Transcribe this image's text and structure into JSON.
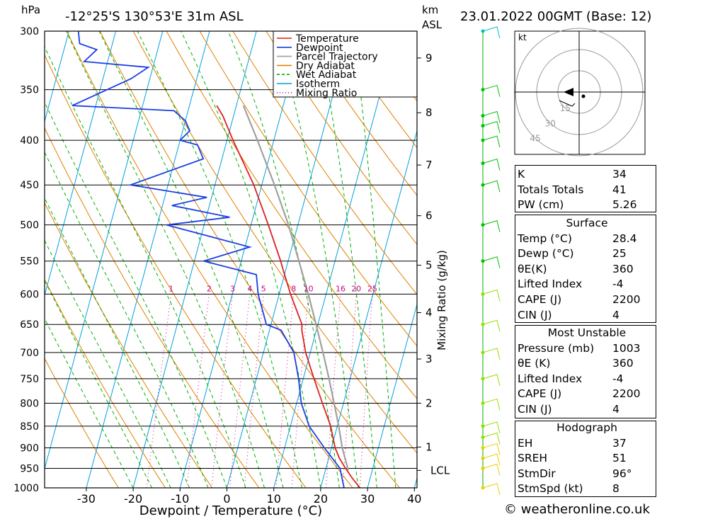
{
  "header": {
    "pressure_unit": "hPa",
    "location": "-12°25'S 130°53'E 31m ASL",
    "height_unit_line1": "km",
    "height_unit_line2": "ASL",
    "datetime": "23.01.2022 00GMT (Base: 12)"
  },
  "copyright": "© weatheronline.co.uk",
  "chart_data": [
    {
      "type": "line",
      "subtype": "skew-T log-P sounding",
      "xlabel": "Dewpoint / Temperature (°C)",
      "ylabel": "hPa",
      "secondary_ylabel": "Mixing Ratio (g/kg)",
      "ylim": [
        1000,
        300
      ],
      "y_scale": "log",
      "xlim": [
        -40,
        40
      ],
      "x_ticks": [
        -30,
        -20,
        -10,
        0,
        10,
        20,
        30,
        40
      ],
      "pressure_levels": [
        300,
        350,
        400,
        450,
        500,
        550,
        600,
        650,
        700,
        750,
        800,
        850,
        900,
        950,
        1000
      ],
      "height_ticks_km": [
        {
          "label": "9",
          "p": 322
        },
        {
          "label": "8",
          "p": 372
        },
        {
          "label": "7",
          "p": 427
        },
        {
          "label": "6",
          "p": 488
        },
        {
          "label": "5",
          "p": 556
        },
        {
          "label": "4",
          "p": 630
        },
        {
          "label": "3",
          "p": 712
        },
        {
          "label": "2",
          "p": 800
        },
        {
          "label": "1",
          "p": 898
        }
      ],
      "lcl": {
        "label": "LCL",
        "p": 955
      },
      "mixing_ratio_labels": [
        "1",
        "2",
        "3",
        "4",
        "5",
        "8",
        "10",
        "16",
        "20",
        "25"
      ],
      "legend": {
        "position": "top",
        "items": [
          {
            "name": "Temperature",
            "color": "#dd2020",
            "style": "solid"
          },
          {
            "name": "Dewpoint",
            "color": "#1a3ee6",
            "style": "solid"
          },
          {
            "name": "Parcel Trajectory",
            "color": "#a0a0a0",
            "style": "solid"
          },
          {
            "name": "Dry Adiabat",
            "color": "#e08000",
            "style": "solid"
          },
          {
            "name": "Wet Adiabat",
            "color": "#00b000",
            "style": "dashed"
          },
          {
            "name": "Isotherm",
            "color": "#00a0e0",
            "style": "solid"
          },
          {
            "name": "Mixing Ratio",
            "color": "#d0008a",
            "style": "dotted"
          }
        ]
      },
      "series": [
        {
          "name": "Temperature",
          "color": "#dd2020",
          "points": [
            {
              "p": 1000,
              "t": 28.4
            },
            {
              "p": 975,
              "t": 26.2
            },
            {
              "p": 950,
              "t": 24.2
            },
            {
              "p": 925,
              "t": 22.3
            },
            {
              "p": 900,
              "t": 20.8
            },
            {
              "p": 875,
              "t": 19.7
            },
            {
              "p": 850,
              "t": 18.6
            },
            {
              "p": 800,
              "t": 15.5
            },
            {
              "p": 750,
              "t": 12.3
            },
            {
              "p": 700,
              "t": 9.0
            },
            {
              "p": 660,
              "t": 6.9
            },
            {
              "p": 650,
              "t": 6.6
            },
            {
              "p": 600,
              "t": 2.4
            },
            {
              "p": 560,
              "t": -0.8
            },
            {
              "p": 550,
              "t": -1.6
            },
            {
              "p": 500,
              "t": -6.3
            },
            {
              "p": 450,
              "t": -11.7
            },
            {
              "p": 400,
              "t": -18.7
            },
            {
              "p": 375,
              "t": -22.3
            },
            {
              "p": 365,
              "t": -24.2
            }
          ]
        },
        {
          "name": "Dewpoint",
          "color": "#1a3ee6",
          "points": [
            {
              "p": 1000,
              "t": 25.0
            },
            {
              "p": 950,
              "t": 23.0
            },
            {
              "p": 900,
              "t": 18.5
            },
            {
              "p": 850,
              "t": 14.0
            },
            {
              "p": 800,
              "t": 11.0
            },
            {
              "p": 750,
              "t": 9.0
            },
            {
              "p": 700,
              "t": 6.5
            },
            {
              "p": 660,
              "t": 2.5
            },
            {
              "p": 650,
              "t": -1.0
            },
            {
              "p": 600,
              "t": -4.5
            },
            {
              "p": 570,
              "t": -6.0
            },
            {
              "p": 550,
              "t": -18.0
            },
            {
              "p": 530,
              "t": -9.0
            },
            {
              "p": 500,
              "t": -28.0
            },
            {
              "p": 490,
              "t": -15.0
            },
            {
              "p": 475,
              "t": -28.0
            },
            {
              "p": 465,
              "t": -21.0
            },
            {
              "p": 450,
              "t": -38.0
            },
            {
              "p": 420,
              "t": -24.0
            },
            {
              "p": 405,
              "t": -26.0
            },
            {
              "p": 400,
              "t": -30.0
            },
            {
              "p": 390,
              "t": -28.5
            },
            {
              "p": 380,
              "t": -30.0
            },
            {
              "p": 370,
              "t": -33.0
            },
            {
              "p": 365,
              "t": -55.0
            },
            {
              "p": 340,
              "t": -44.0
            },
            {
              "p": 330,
              "t": -41.0
            },
            {
              "p": 325,
              "t": -55.0
            },
            {
              "p": 315,
              "t": -53.0
            },
            {
              "p": 310,
              "t": -57.0
            },
            {
              "p": 300,
              "t": -58.0
            }
          ]
        },
        {
          "name": "Parcel Trajectory",
          "color": "#a0a0a0",
          "points": [
            {
              "p": 955,
              "t": 24.9
            },
            {
              "p": 900,
              "t": 22.3
            },
            {
              "p": 850,
              "t": 20.3
            },
            {
              "p": 800,
              "t": 18.0
            },
            {
              "p": 750,
              "t": 15.5
            },
            {
              "p": 700,
              "t": 12.7
            },
            {
              "p": 650,
              "t": 9.6
            },
            {
              "p": 600,
              "t": 6.2
            },
            {
              "p": 550,
              "t": 2.3
            },
            {
              "p": 500,
              "t": -2.0
            },
            {
              "p": 450,
              "t": -7.3
            },
            {
              "p": 400,
              "t": -13.5
            },
            {
              "p": 365,
              "t": -18.5
            }
          ]
        }
      ]
    },
    {
      "type": "scatter",
      "subtype": "wind profile",
      "unit": "kt",
      "levels_hpa": [
        1000,
        950,
        925,
        900,
        875,
        850,
        800,
        750,
        700,
        650,
        600,
        550,
        500,
        450,
        425,
        400,
        385,
        375,
        350,
        300
      ],
      "colors": {
        "low": "#e8d000",
        "mid": "#90e000",
        "upper": "#00c000",
        "top": "#00c0c0"
      }
    },
    {
      "type": "scatter",
      "subtype": "hodograph",
      "unit": "kt",
      "ring_labels": [
        "15",
        "30",
        "45"
      ]
    }
  ],
  "indices_table": [
    {
      "label": "K",
      "value": "34"
    },
    {
      "label": "Totals Totals",
      "value": "41"
    },
    {
      "label": "PW (cm)",
      "value": "5.26"
    }
  ],
  "surface": {
    "title": "Surface",
    "rows": [
      {
        "label": "Temp (°C)",
        "value": "28.4"
      },
      {
        "label": "Dewp (°C)",
        "value": "25"
      },
      {
        "label": "θE(K)",
        "value": "360"
      },
      {
        "label": "Lifted Index",
        "value": "-4"
      },
      {
        "label": "CAPE (J)",
        "value": "2200"
      },
      {
        "label": "CIN (J)",
        "value": "4"
      }
    ]
  },
  "most_unstable": {
    "title": "Most Unstable",
    "rows": [
      {
        "label": "Pressure (mb)",
        "value": "1003"
      },
      {
        "label": "θE (K)",
        "value": "360"
      },
      {
        "label": "Lifted Index",
        "value": "-4"
      },
      {
        "label": "CAPE (J)",
        "value": "2200"
      },
      {
        "label": "CIN (J)",
        "value": "4"
      }
    ]
  },
  "hodograph_table": {
    "title": "Hodograph",
    "rows": [
      {
        "label": "EH",
        "value": "37"
      },
      {
        "label": "SREH",
        "value": "51"
      },
      {
        "label": "StmDir",
        "value": "96°"
      },
      {
        "label": "StmSpd (kt)",
        "value": "8"
      }
    ]
  }
}
